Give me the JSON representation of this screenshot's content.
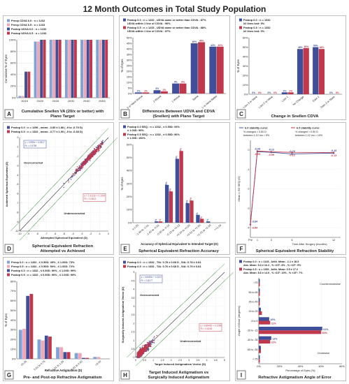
{
  "title": "12 Month Outcomes in Total Study Population",
  "panels": [
    {
      "letter": "A",
      "caption_lines": [
        "Cumulative Snellen VA (20/x or better) with",
        "Plano Target"
      ],
      "chart_data": {
        "type": "bar",
        "ylabel": "Cumulative % of Eyes",
        "categories": [
          "20/16",
          "20/20",
          "20/25",
          "20/32",
          "20/40",
          "20/63"
        ],
        "yticks": [
          "0%",
          "20%",
          "40%",
          "60%",
          "80%",
          "100%"
        ],
        "ylim": [
          0,
          100
        ],
        "grid": true,
        "legend": [
          "Preop CDVA 6.0 : n = 1232",
          "Preop CDVA 6.5 : n = 1233",
          "Postop UDVA 6.0 : n = 1232",
          "Postop UDVA 6.5 : n = 1233"
        ],
        "colors": [
          "#7fa3d8",
          "#f2a6b4",
          "#3f4f9a",
          "#c0384b"
        ],
        "series": [
          {
            "values": [
              3,
              97,
              100,
              100,
              100,
              100
            ]
          },
          {
            "values": [
              3,
              97,
              100,
              100,
              100,
              100
            ]
          },
          {
            "values": [
              45,
              100,
              100,
              100,
              100,
              100
            ]
          },
          {
            "values": [
              45,
              100,
              100,
              100,
              100,
              100
            ]
          }
        ]
      }
    },
    {
      "letter": "B",
      "caption_lines": [
        "Differences Between UDVA and CDVA",
        "(Snellen) with Plano Target"
      ],
      "chart_data": {
        "type": "bar",
        "ylabel": "% of Eyes",
        "categories": [
          "3 or More Worse",
          "2 Worse",
          "1 Worse",
          "Same",
          "1 or More Better"
        ],
        "ylim": [
          0,
          50
        ],
        "yticks": [
          "0%",
          "5%",
          "10%",
          "15%",
          "20%",
          "25%",
          "30%",
          "35%",
          "40%",
          "45%",
          "50%"
        ],
        "legend": [
          "Postop 6.0 : n = 1232 , UDVA same or better than CDVA : 87% , UDVA within 1 line of CDVA : 96%",
          "Postop 6.5 : n = 1233 , UDVA same or better than CDVA : 88% , UDVA within 1 line of CDVA : 97%"
        ],
        "colors": [
          "#3f4f9a",
          "#c0384b"
        ],
        "series": [
          {
            "values": [
              1,
              3,
              9,
              45,
              42
            ],
            "labels": [
              "1%",
              "3%",
              "9%",
              "45%",
              "42%"
            ]
          },
          {
            "values": [
              1,
              2,
              9,
              46,
              42
            ],
            "labels": [
              "1%",
              "2%",
              "9%",
              "46%",
              "42%"
            ]
          }
        ]
      }
    },
    {
      "letter": "C",
      "caption_lines": [
        "Change in Snellen CDVA"
      ],
      "chart_data": {
        "type": "bar",
        "ylabel": "% of Eyes",
        "categories": [
          "Loss 3 or More",
          "Loss 2 or More",
          "Loss 1",
          "No Change",
          "Gain 1",
          "Gain 2 or More"
        ],
        "ylim": [
          0,
          60
        ],
        "yticks": [
          "0%",
          "10%",
          "20%",
          "30%",
          "40%",
          "50%",
          "60%"
        ],
        "legend": [
          "Postop 6.0 : n = 1332 , ≥2 lines lost: 0%",
          "Postop 6.5 : n = 1332 , ≥2 lines lost: 0%"
        ],
        "colors": [
          "#3f4f9a",
          "#c0384b"
        ],
        "series": [
          {
            "values": [
              0,
              0,
              2,
              48,
              50,
              0
            ],
            "labels": [
              "0%",
              "0%",
              "2%",
              "48%",
              "50%",
              "0%"
            ]
          },
          {
            "values": [
              0,
              0,
              2,
              49,
              48,
              0
            ],
            "labels": [
              "0%",
              "0%",
              "2%",
              "49%",
              "48%",
              "0%"
            ]
          }
        ]
      }
    },
    {
      "letter": "D",
      "caption_lines": [
        "Spherical Equivalent Refraction",
        "Attempted vs Achieved"
      ],
      "chart_data": {
        "type": "scatter",
        "xlabel": "Attempted Spherical Equivalent (D)",
        "ylabel": "Achieved Spherical Equivalent (D)",
        "xlim": [
          -10,
          0
        ],
        "ylim": [
          -10,
          0
        ],
        "legend": [
          "Postop 6.0 : n = 1296 , mean: -3.85 ± 1.88 ( -9 to -0.75 D)",
          "Postop 6.5 : n = 1332 , mean: -3.77 ± 1.90 ( -9 to -0.38 D)"
        ],
        "annotations": [
          "Overcorrected",
          "Undercorrected"
        ],
        "fits": [
          "y = 0.995x + 0.0917  R² = 0.9755",
          "y = 1.0113x + 0.1014  R² = 0.9613"
        ],
        "colors": [
          "#3f4f9a",
          "#c0384b"
        ]
      }
    },
    {
      "letter": "E",
      "caption_lines": [
        "Spherical Equivalent Refraction Accuracy"
      ],
      "chart_data": {
        "type": "bar",
        "xlabel": "Accuracy of Spherical Equivalent to Intended Target (D)",
        "ylabel": "% of Eyes",
        "categories": [
          "≤-1.50",
          "-1.49 to -1.01",
          "-1.00 to -0.51",
          "-0.50 to -0.14",
          "-0.13 to +0.13",
          "+0.14 to +0.50",
          "+0.51 to +1.00",
          "+1.01 to +1.50",
          ">+1.50"
        ],
        "ylim": [
          0,
          60
        ],
        "legend": [
          "Postop 6.0 SEQ : n = 1332 , ± 0.50D: 93% , ± 1.00D: 99%",
          "Postop 6.5 SEQ : n = 1332 , ± 0.50D: 96% , ± 1.00D: 100%"
        ],
        "colors": [
          "#3f4f9a",
          "#c0384b"
        ],
        "series": [
          {
            "values": [
              0,
              0,
              1,
              29,
              49,
              15,
              6,
              1,
              0
            ],
            "labels": [
              "",
              "",
              "1%",
              "29%",
              "49%",
              "15%",
              "6%",
              "1%",
              ""
            ]
          },
          {
            "values": [
              0,
              0,
              1,
              24,
              55,
              17,
              3,
              0,
              0
            ],
            "labels": [
              "",
              "",
              "1%",
              "24%",
              "55%",
              "17%",
              "3%",
              "",
              ""
            ]
          }
        ]
      }
    },
    {
      "letter": "F",
      "caption_lines": [
        "Spherical Equivalent Refraction Stability"
      ],
      "chart_data": {
        "type": "line",
        "xlabel": "Time After Surgery (months)",
        "ylabel": "Mean ± SD SEQ (D)",
        "categories": [
          "Pre",
          "1",
          "3",
          "6",
          "12"
        ],
        "x": [
          0,
          1,
          3,
          6,
          12
        ],
        "legend": [
          "6.0 stability curve",
          "6.5 stability curve"
        ],
        "notes": [
          "% changed > 0.50 D between 1-12 mo = 9%",
          "% changed > 0.50 D between 1-12 mo = 10%"
        ],
        "colors": [
          "#3f4f9a",
          "#c0384b"
        ],
        "series": [
          {
            "values": [
              -3.84,
              -0.08,
              -0.12,
              -0.2,
              -0.16
            ],
            "labels": [
              "-3.84",
              "-0.08",
              "-0.12",
              "-0.20",
              "-0.16"
            ]
          },
          {
            "values": [
              -3.84,
              -0.05,
              -0.09,
              -0.12,
              -0.13
            ],
            "labels": [
              "-3.84",
              "-0.05",
              "-0.09",
              "-0.12",
              "-0.13"
            ]
          }
        ]
      }
    },
    {
      "letter": "G",
      "caption_lines": [
        "Pre- and Post-op Refractive Astigmatism"
      ],
      "chart_data": {
        "type": "bar",
        "xlabel": "Refractive Astigmatism (D)",
        "ylabel": "% of Eyes",
        "categories": [
          "≤0.25",
          "0.51 to 0.75",
          "1.01 to 1.25",
          "1.51 to 2.00",
          ">3.00"
        ],
        "ylim": [
          0,
          80
        ],
        "yticks": [
          "0%",
          "10%",
          "20%",
          "30%",
          "40%",
          "50%",
          "60%",
          "70%",
          "80%"
        ],
        "legend": [
          "Preop 6.0 : n = 1332 , ≤ 0.50D: 49% , ≤ 1.00D: 73%",
          "Preop 6.5 : n = 1332 , ≤ 0.50D: 50% , ≤ 1.00D: 72%",
          "Postop 6.0 : n = 1332 , ≤ 0.50D: 90% , ≤ 1.00D: 99%",
          "Postop 6.5 : n = 1332 , ≤ 0.50D: 90% , ≤ 1.00D: 99%"
        ],
        "colors": [
          "#7fa3d8",
          "#f2a6b4",
          "#3f4f9a",
          "#c0384b"
        ],
        "series": [
          {
            "values": [
              30,
              20,
              12,
              6,
              2
            ]
          },
          {
            "values": [
              31,
              19,
              12,
              6,
              2
            ]
          },
          {
            "values": [
              65,
              24,
              7,
              1,
              0
            ]
          },
          {
            "values": [
              67,
              23,
              7,
              1,
              0
            ]
          }
        ]
      }
    },
    {
      "letter": "H",
      "caption_lines": [
        "Target Induced Astigmatism vs",
        "Surgically Induced Astigmatism"
      ],
      "chart_data": {
        "type": "scatter",
        "xlabel": "Target Induced Astigmatism Vector (D)",
        "ylabel": "Surgically Induced Astigmatism Vector (D)",
        "xlim": [
          0,
          5
        ],
        "ylim": [
          0,
          5
        ],
        "legend": [
          "Postop 6.0 : n = 1332 , TIA: 0.78 ± 0.68 D , SIA: 0.78 ± 0.64",
          "Postop 6.5 : n = 1332 , TIA: 0.76 ± 0.68 D , SIA: 0.79 ± 0.64"
        ],
        "annotations": [
          "Overcorrected",
          "Undercorrected"
        ],
        "fits": [
          "y = 0.8450x + 0.1157  R² = 0.8177",
          "y = 0.8546x + 0.1299  R² = 0.8245"
        ],
        "colors": [
          "#3f4f9a",
          "#c0384b"
        ]
      }
    },
    {
      "letter": "I",
      "caption_lines": [
        "Refractive Astigmatism Angle of Error"
      ],
      "chart_data": {
        "type": "bar",
        "orientation": "horizontal",
        "xlabel": "Percentage of Eyes (%)",
        "ylabel": "Angle of Error (degrees)",
        "categories": [
          ">75",
          "55 to 65",
          "35 to 45",
          "15 to 25",
          "-5 to 5",
          "-25 to -15",
          "-45 to -35",
          "-65 to -55",
          "<-75"
        ],
        "xticks": [
          "0%",
          "20%",
          "40%",
          "60%",
          "80%"
        ],
        "xlim": [
          0,
          80
        ],
        "legend": [
          "Postop 6.0 : n = 1128 , Arith. Mean: -1.1 ± 18.5 , Abs. Mean: 9.0 ± 16.2 , % <15°: 8% , % >15°: 9%",
          "Postop 6.5 : n = 1155 , Arith. Mean: 0.5 ± 17.2 , Abs. Mean: 8.6 ± 14.9 , % <15°: 10% , % >15°: 7%"
        ],
        "annotations": [
          "Counterclockwise",
          "Clockwise"
        ],
        "colors": [
          "#3f4f9a",
          "#c0384b"
        ],
        "series": [
          {
            "values": [
              1,
              1,
              1,
              2,
              10,
              61,
              12,
              2,
              1
            ],
            "labels": [
              "",
              "",
              "",
              "",
              "10%",
              "61%",
              "12%",
              "",
              ""
            ]
          },
          {
            "values": [
              1,
              1,
              1,
              3,
              11,
              60,
              11,
              2,
              1
            ],
            "labels": [
              "",
              "",
              "",
              "",
              "11%",
              "60%",
              "11%",
              "",
              ""
            ]
          }
        ]
      }
    }
  ]
}
